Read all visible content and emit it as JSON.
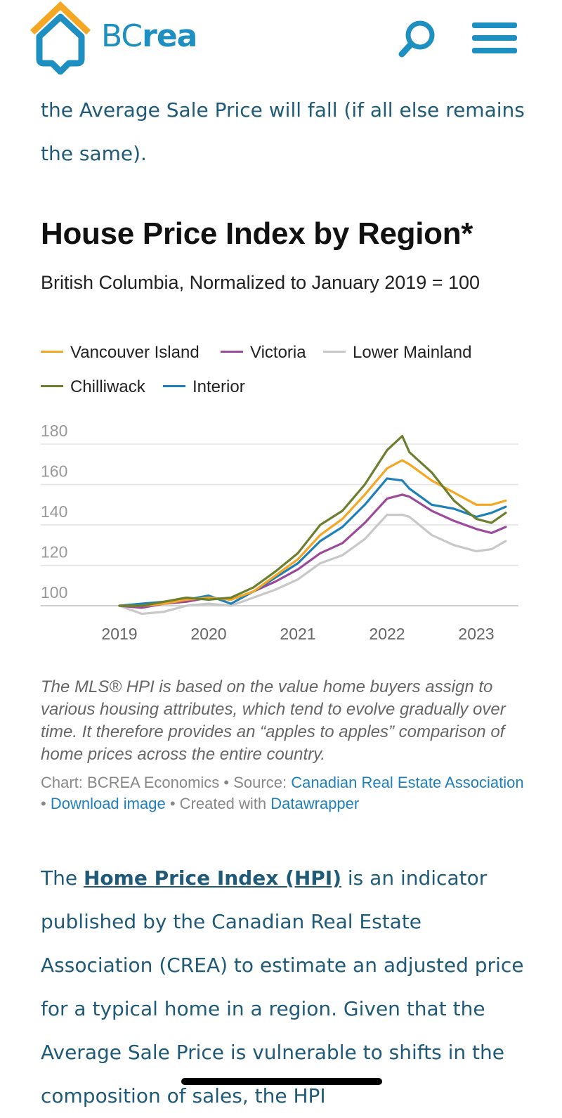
{
  "header": {
    "logo_text_bc": "BC",
    "logo_text_rea": "rea",
    "colors": {
      "brand_blue": "#1d8fc0",
      "roof_orange": "#f5a623"
    }
  },
  "intro": {
    "text": "the Average Sale Price will fall (if all else remains the same)."
  },
  "chart": {
    "title": "House Price Index by Region*",
    "subtitle": "British Columbia, Normalized to January 2019 = 100",
    "legend": [
      {
        "label": "Vancouver Island",
        "color": "#f5a623"
      },
      {
        "label": "Victoria",
        "color": "#9b4a9c"
      },
      {
        "label": "Lower Mainland",
        "color": "#c8c8c8"
      },
      {
        "label": "Chilliwack",
        "color": "#6b7f2e"
      },
      {
        "label": "Interior",
        "color": "#1d80b8"
      }
    ],
    "note": "The MLS® HPI is based on the value home buyers assign to various housing attributes, which tend to evolve gradually over time. It therefore provides an “apples to apples” comparison of home prices across the entire country.",
    "credits": {
      "chart_by": "Chart: BCREA Economics",
      "source_prefix": "Source:",
      "source_link": "Canadian Real Estate Association",
      "download": "Download image",
      "created_prefix": "Created with",
      "created_link": "Datawrapper",
      "sep": " • "
    }
  },
  "chart_data": {
    "type": "line",
    "title": "House Price Index by Region*",
    "subtitle": "British Columbia, Normalized to January 2019 = 100",
    "ylim": [
      100,
      180
    ],
    "yticks": [
      100,
      120,
      140,
      160,
      180
    ],
    "xticks": [
      "2019",
      "2020",
      "2021",
      "2022",
      "2023"
    ],
    "grid": true,
    "legend_position": "top",
    "x_dates": [
      2019.0,
      2019.25,
      2019.5,
      2019.75,
      2020.0,
      2020.25,
      2020.5,
      2020.75,
      2021.0,
      2021.25,
      2021.5,
      2021.75,
      2022.0,
      2022.17,
      2022.25,
      2022.5,
      2022.75,
      2023.0,
      2023.17,
      2023.33
    ],
    "series": [
      {
        "name": "Vancouver Island",
        "color": "#f5a623",
        "values": [
          100,
          100,
          101,
          103,
          104,
          103,
          107,
          115,
          123,
          135,
          143,
          155,
          168,
          172,
          170,
          162,
          156,
          150,
          150,
          152
        ]
      },
      {
        "name": "Victoria",
        "color": "#9b4a9c",
        "values": [
          100,
          99,
          101,
          102,
          104,
          103,
          107,
          112,
          118,
          126,
          131,
          141,
          153,
          155,
          154,
          147,
          142,
          138,
          136,
          139
        ]
      },
      {
        "name": "Lower Mainland",
        "color": "#c8c8c8",
        "values": [
          100,
          96,
          97,
          100,
          101,
          100,
          104,
          108,
          113,
          121,
          125,
          133,
          145,
          145,
          144,
          135,
          130,
          127,
          128,
          132
        ]
      },
      {
        "name": "Chilliwack",
        "color": "#6b7f2e",
        "values": [
          100,
          100,
          102,
          104,
          103,
          104,
          109,
          117,
          126,
          140,
          147,
          160,
          177,
          184,
          176,
          166,
          152,
          143,
          141,
          146
        ]
      },
      {
        "name": "Interior",
        "color": "#1d80b8",
        "values": [
          100,
          101,
          102,
          103,
          105,
          101,
          107,
          114,
          121,
          132,
          139,
          150,
          163,
          162,
          158,
          150,
          148,
          144,
          146,
          149
        ]
      }
    ]
  },
  "body": {
    "prefix": "The ",
    "link": "Home Price Index (HPI)",
    "rest": " is an indicator published by the Canadian Real Estate Association (CREA) to estimate an adjusted price for a typical home in a region. Given that the Average Sale Price is vulnerable to shifts in the composition of sales, the HPI"
  }
}
